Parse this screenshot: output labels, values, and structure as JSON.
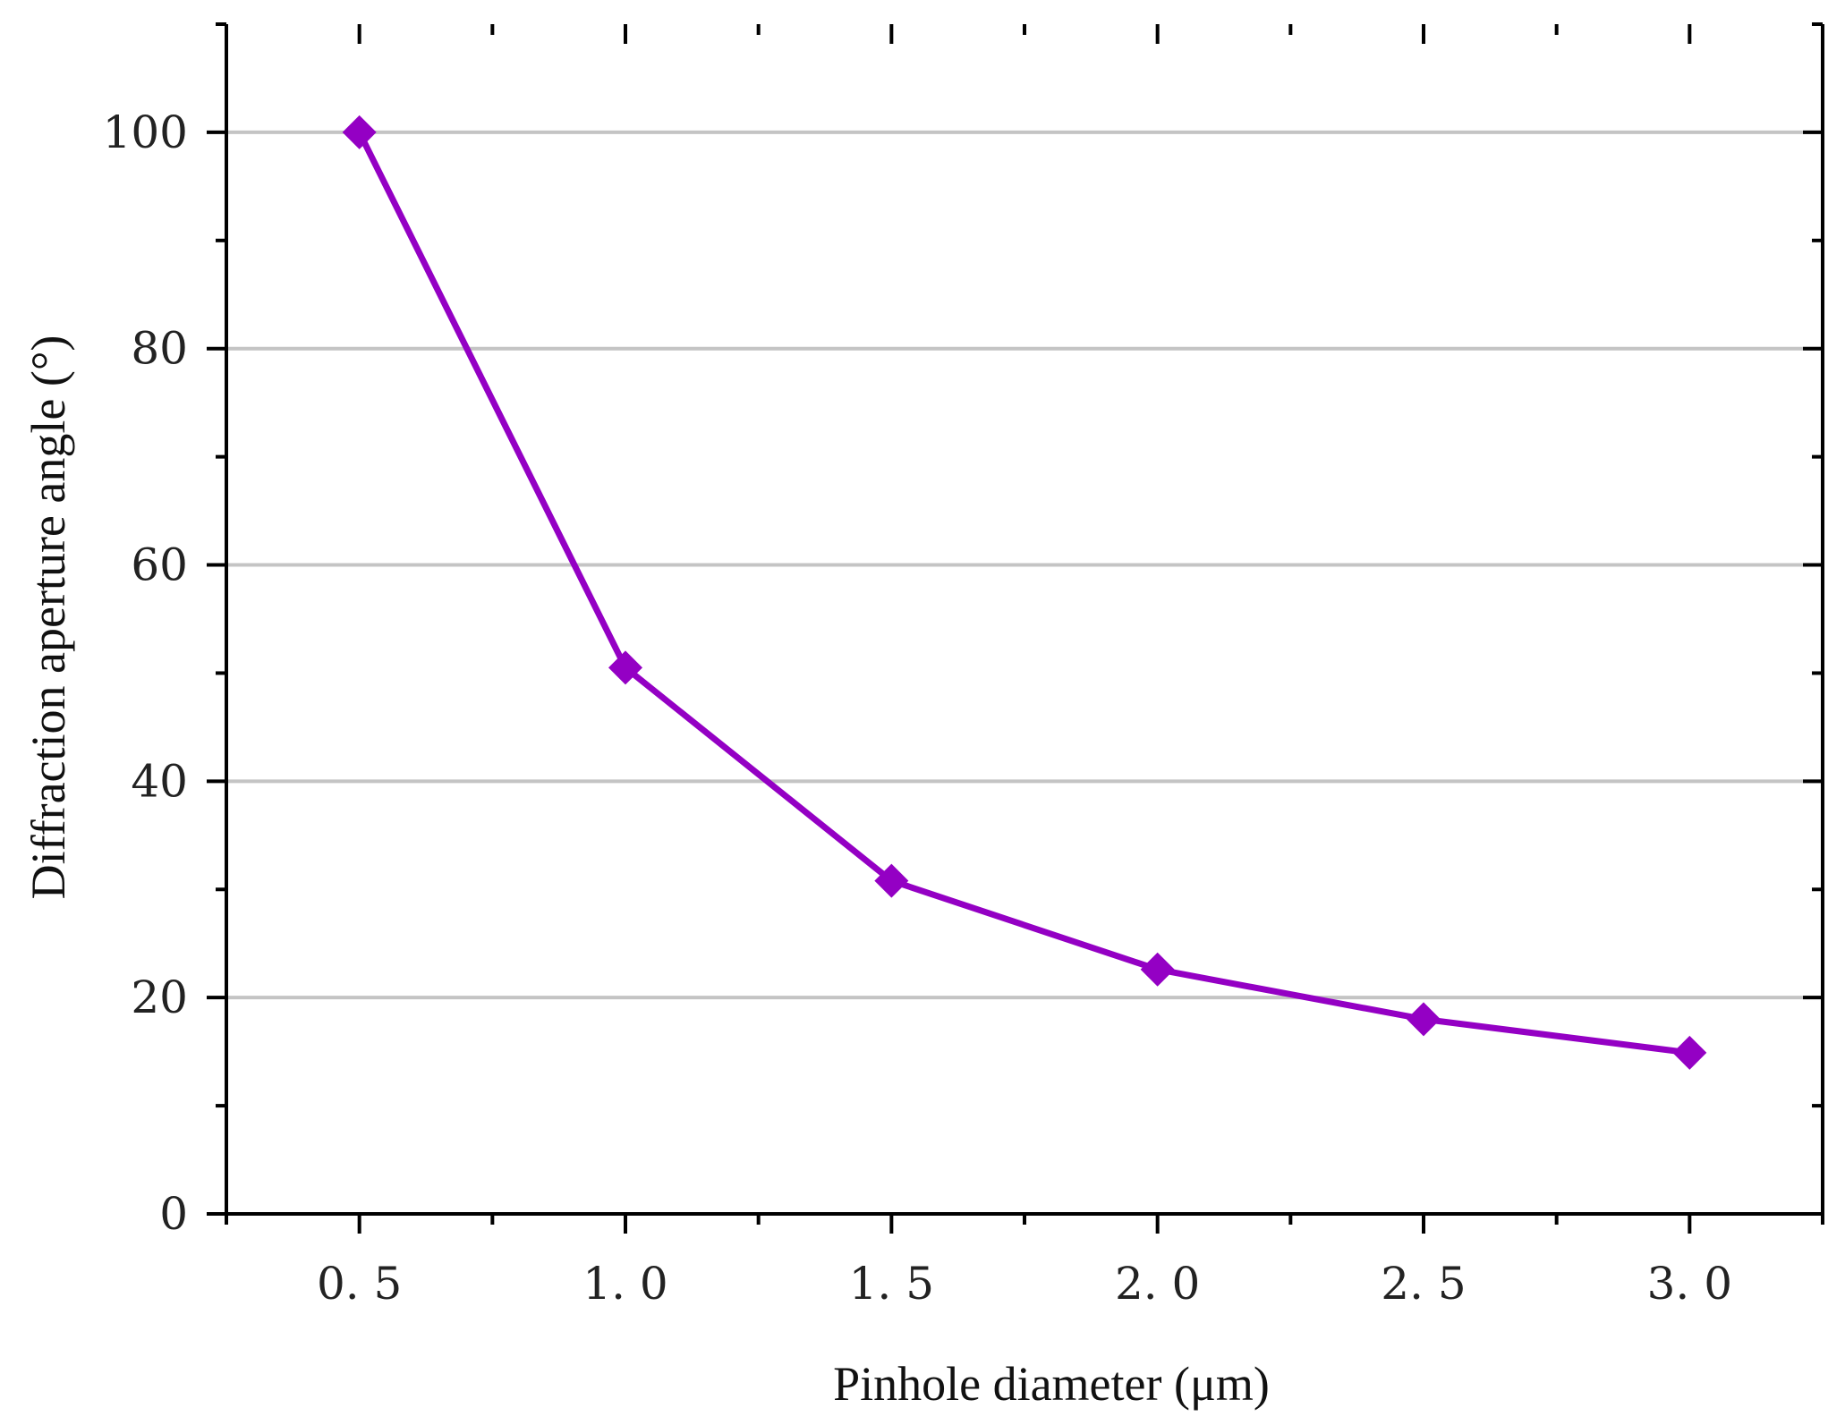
{
  "chart_data": {
    "type": "line",
    "title": "",
    "xlabel": "Pinhole diameter (μm)",
    "ylabel": "Diffraction aperture angle (°)",
    "xlim": [
      0.25,
      3.25
    ],
    "ylim": [
      0,
      110
    ],
    "x_ticks": [
      0.5,
      1.0,
      1.5,
      2.0,
      2.5,
      3.0
    ],
    "x_tick_labels": [
      "0. 5",
      "1. 0",
      "1. 5",
      "2. 0",
      "2. 5",
      "3. 0"
    ],
    "y_ticks": [
      0,
      20,
      40,
      60,
      80,
      100
    ],
    "y_tick_labels": [
      "0",
      "20",
      "40",
      "60",
      "80",
      "100"
    ],
    "grid": "horizontal",
    "legend": "none",
    "series": [
      {
        "x": [
          0.5,
          1.0,
          1.5,
          2.0,
          2.5,
          3.0
        ],
        "values": [
          100,
          50.5,
          30.8,
          22.6,
          18.0,
          14.9
        ],
        "color": "#9400c4",
        "marker": "diamond"
      }
    ]
  }
}
